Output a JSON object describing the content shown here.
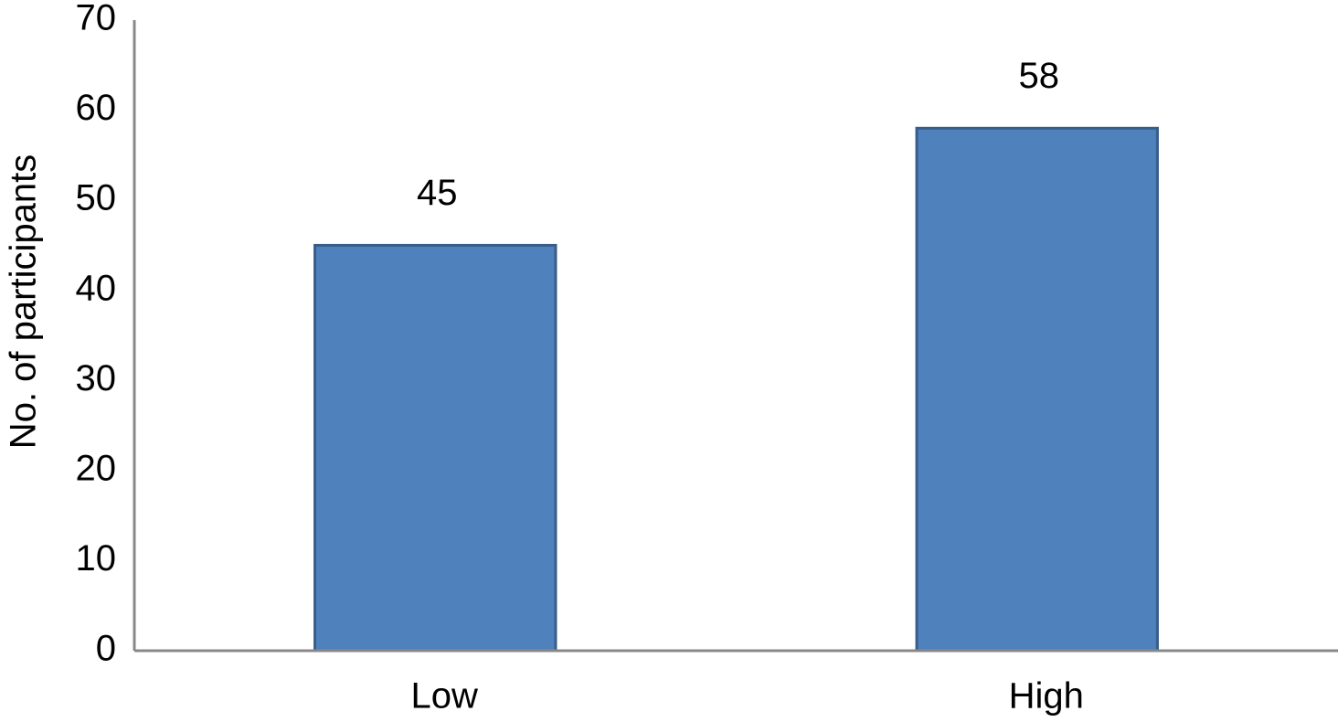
{
  "chart_data": {
    "type": "bar",
    "y_label": "No. of participants",
    "categories": [
      "Low",
      "High"
    ],
    "values": [
      45,
      58
    ],
    "color": "#4f81bd",
    "ylim": [
      0,
      70
    ],
    "yticks": [
      0,
      10,
      20,
      30,
      40,
      50,
      60,
      70
    ],
    "grid": false
  }
}
